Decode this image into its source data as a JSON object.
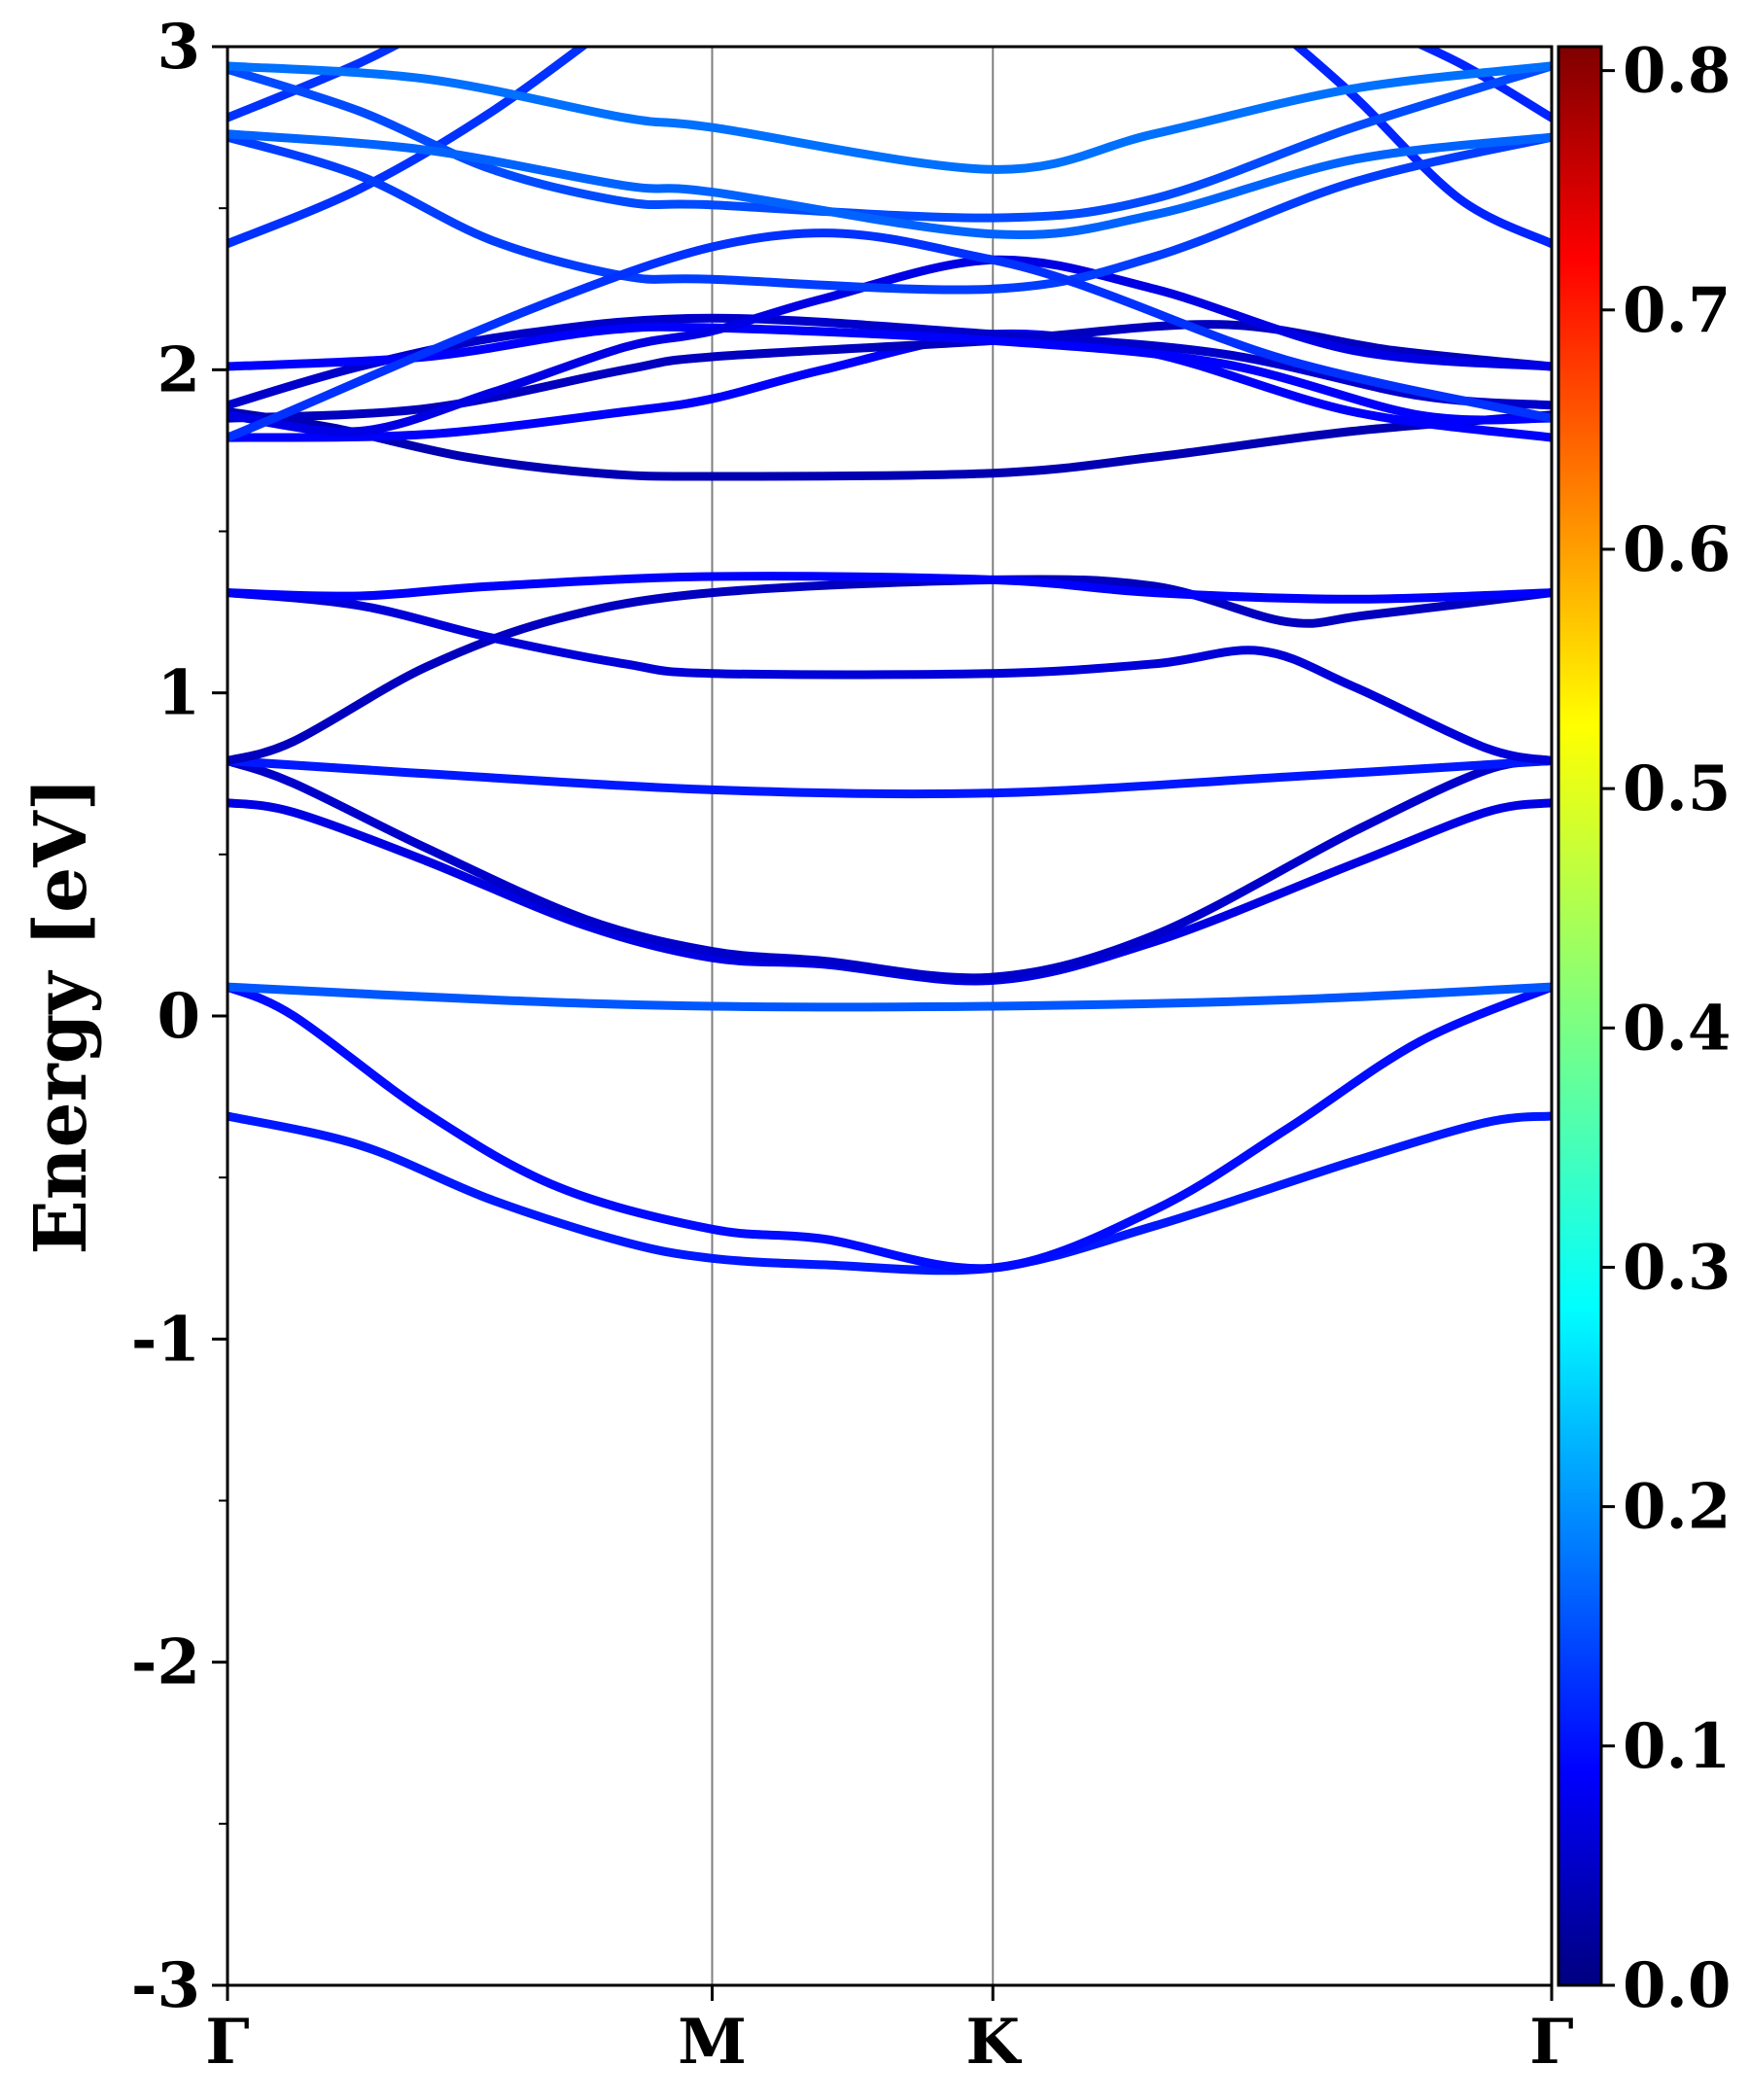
{
  "chart_data": {
    "type": "line",
    "title": "",
    "xlabel": "",
    "ylabel": "Energy [eV]",
    "ylim": [
      -3,
      3
    ],
    "y_ticks": [
      {
        "value": 3,
        "label": "3"
      },
      {
        "value": 2,
        "label": "2"
      },
      {
        "value": 1,
        "label": "1"
      },
      {
        "value": 0,
        "label": "0"
      },
      {
        "value": -1,
        "label": "-1"
      },
      {
        "value": -2,
        "label": "-2"
      },
      {
        "value": -3,
        "label": "-3"
      }
    ],
    "k_path": [
      {
        "label": "Γ",
        "k": 0
      },
      {
        "label": "M",
        "k": 0.366
      },
      {
        "label": "K",
        "k": 0.578
      },
      {
        "label": "Γ",
        "k": 1.0
      }
    ],
    "colorbar": {
      "colormap": "jet",
      "min": 0.0,
      "max": 0.81,
      "ticks": [
        {
          "value": 0.0,
          "label": "0.0"
        },
        {
          "value": 0.1,
          "label": "0.1"
        },
        {
          "value": 0.2,
          "label": "0.2"
        },
        {
          "value": 0.3,
          "label": "0.3"
        },
        {
          "value": 0.4,
          "label": "0.4"
        },
        {
          "value": 0.5,
          "label": "0.5"
        },
        {
          "value": 0.6,
          "label": "0.6"
        },
        {
          "value": 0.7,
          "label": "0.7"
        },
        {
          "value": 0.8,
          "label": "0.8"
        }
      ]
    },
    "series": [
      {
        "weight": 0.12,
        "points": [
          [
            0,
            -0.31
          ],
          [
            0.1,
            -0.4
          ],
          [
            0.2,
            -0.57
          ],
          [
            0.3,
            -0.7
          ],
          [
            0.366,
            -0.75
          ],
          [
            0.45,
            -0.77
          ],
          [
            0.578,
            -0.78
          ],
          [
            0.7,
            -0.65
          ],
          [
            0.85,
            -0.45
          ],
          [
            0.95,
            -0.33
          ],
          [
            1.0,
            -0.31
          ]
        ]
      },
      {
        "weight": 0.11,
        "points": [
          [
            0,
            0.09
          ],
          [
            0.05,
            0.0
          ],
          [
            0.15,
            -0.3
          ],
          [
            0.25,
            -0.53
          ],
          [
            0.366,
            -0.66
          ],
          [
            0.45,
            -0.69
          ],
          [
            0.578,
            -0.78
          ],
          [
            0.7,
            -0.6
          ],
          [
            0.8,
            -0.35
          ],
          [
            0.9,
            -0.08
          ],
          [
            1.0,
            0.09
          ]
        ]
      },
      {
        "weight": 0.17,
        "points": [
          [
            0,
            0.09
          ],
          [
            0.2,
            0.05
          ],
          [
            0.366,
            0.03
          ],
          [
            0.578,
            0.03
          ],
          [
            0.8,
            0.05
          ],
          [
            1.0,
            0.09
          ]
        ]
      },
      {
        "weight": 0.08,
        "points": [
          [
            0,
            0.66
          ],
          [
            0.05,
            0.63
          ],
          [
            0.15,
            0.48
          ],
          [
            0.27,
            0.28
          ],
          [
            0.366,
            0.18
          ],
          [
            0.45,
            0.16
          ],
          [
            0.578,
            0.11
          ],
          [
            0.7,
            0.23
          ],
          [
            0.85,
            0.47
          ],
          [
            0.95,
            0.63
          ],
          [
            1.0,
            0.66
          ]
        ]
      },
      {
        "weight": 0.06,
        "points": [
          [
            0,
            0.79
          ],
          [
            0.05,
            0.72
          ],
          [
            0.15,
            0.52
          ],
          [
            0.27,
            0.3
          ],
          [
            0.366,
            0.2
          ],
          [
            0.45,
            0.17
          ],
          [
            0.578,
            0.12
          ],
          [
            0.7,
            0.25
          ],
          [
            0.85,
            0.57
          ],
          [
            0.95,
            0.76
          ],
          [
            1.0,
            0.79
          ]
        ]
      },
      {
        "weight": 0.12,
        "points": [
          [
            0,
            0.79
          ],
          [
            0.15,
            0.75
          ],
          [
            0.366,
            0.7
          ],
          [
            0.578,
            0.69
          ],
          [
            0.8,
            0.74
          ],
          [
            1.0,
            0.79
          ]
        ]
      },
      {
        "weight": 0.05,
        "points": [
          [
            0,
            0.79
          ],
          [
            0.05,
            0.85
          ],
          [
            0.15,
            1.08
          ],
          [
            0.25,
            1.23
          ],
          [
            0.366,
            1.31
          ],
          [
            0.578,
            1.35
          ],
          [
            0.7,
            1.33
          ],
          [
            0.8,
            1.22
          ],
          [
            0.86,
            1.24
          ],
          [
            1.0,
            1.31
          ]
        ]
      },
      {
        "weight": 0.07,
        "points": [
          [
            0,
            1.31
          ],
          [
            0.1,
            1.27
          ],
          [
            0.2,
            1.17
          ],
          [
            0.3,
            1.09
          ],
          [
            0.366,
            1.06
          ],
          [
            0.578,
            1.06
          ],
          [
            0.7,
            1.09
          ],
          [
            0.78,
            1.13
          ],
          [
            0.85,
            1.02
          ],
          [
            0.95,
            0.83
          ],
          [
            1.0,
            0.79
          ]
        ]
      },
      {
        "weight": 0.1,
        "points": [
          [
            0,
            1.31
          ],
          [
            0.1,
            1.3
          ],
          [
            0.2,
            1.33
          ],
          [
            0.366,
            1.36
          ],
          [
            0.578,
            1.35
          ],
          [
            0.7,
            1.31
          ],
          [
            0.85,
            1.29
          ],
          [
            1.0,
            1.31
          ]
        ]
      },
      {
        "weight": 0.04,
        "points": [
          [
            0,
            1.87
          ],
          [
            0.08,
            1.82
          ],
          [
            0.18,
            1.73
          ],
          [
            0.28,
            1.68
          ],
          [
            0.366,
            1.67
          ],
          [
            0.578,
            1.68
          ],
          [
            0.7,
            1.73
          ],
          [
            0.85,
            1.81
          ],
          [
            1.0,
            1.86
          ]
        ]
      },
      {
        "weight": 0.1,
        "points": [
          [
            0,
            1.79
          ],
          [
            0.15,
            1.8
          ],
          [
            0.3,
            1.87
          ],
          [
            0.366,
            1.91
          ],
          [
            0.45,
            2.0
          ],
          [
            0.578,
            2.11
          ],
          [
            0.7,
            2.05
          ],
          [
            0.85,
            1.87
          ],
          [
            1.0,
            1.79
          ]
        ]
      },
      {
        "weight": 0.05,
        "points": [
          [
            0,
            1.85
          ],
          [
            0.15,
            1.88
          ],
          [
            0.3,
            2.0
          ],
          [
            0.366,
            2.04
          ],
          [
            0.578,
            2.09
          ],
          [
            0.75,
            2.14
          ],
          [
            0.88,
            2.06
          ],
          [
            1.0,
            2.01
          ]
        ]
      },
      {
        "weight": 0.06,
        "points": [
          [
            0,
            1.89
          ],
          [
            0.1,
            2.01
          ],
          [
            0.22,
            2.11
          ],
          [
            0.366,
            2.16
          ],
          [
            0.578,
            2.11
          ],
          [
            0.75,
            2.05
          ],
          [
            0.9,
            1.92
          ],
          [
            1.0,
            1.89
          ]
        ]
      },
      {
        "weight": 0.1,
        "points": [
          [
            0,
            2.01
          ],
          [
            0.15,
            2.04
          ],
          [
            0.28,
            2.12
          ],
          [
            0.366,
            2.13
          ],
          [
            0.578,
            2.09
          ],
          [
            0.75,
            2.02
          ],
          [
            0.9,
            1.86
          ],
          [
            1.0,
            1.85
          ]
        ]
      },
      {
        "weight": 0.08,
        "points": [
          [
            0,
            1.86
          ],
          [
            0.1,
            1.81
          ],
          [
            0.2,
            1.93
          ],
          [
            0.3,
            2.07
          ],
          [
            0.366,
            2.12
          ],
          [
            0.45,
            2.22
          ],
          [
            0.578,
            2.34
          ],
          [
            0.7,
            2.25
          ],
          [
            0.85,
            2.06
          ],
          [
            1.0,
            2.01
          ]
        ]
      },
      {
        "weight": 0.14,
        "points": [
          [
            0,
            2.39
          ],
          [
            0.1,
            2.56
          ],
          [
            0.2,
            2.8
          ],
          [
            0.3,
            3.1
          ]
        ]
      },
      {
        "weight": 0.14,
        "points": [
          [
            0,
            2.78
          ],
          [
            0.1,
            2.95
          ],
          [
            0.17,
            3.1
          ]
        ]
      },
      {
        "weight": 0.13,
        "points": [
          [
            0.78,
            3.1
          ],
          [
            0.85,
            2.85
          ],
          [
            0.93,
            2.53
          ],
          [
            1.0,
            2.39
          ]
        ]
      },
      {
        "weight": 0.13,
        "points": [
          [
            0.85,
            3.1
          ],
          [
            0.93,
            2.95
          ],
          [
            1.0,
            2.78
          ]
        ]
      },
      {
        "weight": 0.15,
        "points": [
          [
            0,
            2.72
          ],
          [
            0.1,
            2.6
          ],
          [
            0.2,
            2.4
          ],
          [
            0.3,
            2.29
          ],
          [
            0.366,
            2.28
          ],
          [
            0.578,
            2.25
          ],
          [
            0.7,
            2.35
          ],
          [
            0.85,
            2.58
          ],
          [
            1.0,
            2.72
          ]
        ]
      },
      {
        "weight": 0.16,
        "points": [
          [
            0,
            2.93
          ],
          [
            0.1,
            2.8
          ],
          [
            0.2,
            2.62
          ],
          [
            0.3,
            2.52
          ],
          [
            0.366,
            2.51
          ],
          [
            0.578,
            2.47
          ],
          [
            0.7,
            2.53
          ],
          [
            0.85,
            2.75
          ],
          [
            1.0,
            2.94
          ]
        ]
      },
      {
        "weight": 0.18,
        "points": [
          [
            0,
            2.73
          ],
          [
            0.15,
            2.68
          ],
          [
            0.3,
            2.57
          ],
          [
            0.366,
            2.55
          ],
          [
            0.578,
            2.42
          ],
          [
            0.7,
            2.48
          ],
          [
            0.85,
            2.65
          ],
          [
            1.0,
            2.72
          ]
        ]
      },
      {
        "weight": 0.19,
        "points": [
          [
            0,
            2.94
          ],
          [
            0.15,
            2.9
          ],
          [
            0.3,
            2.78
          ],
          [
            0.366,
            2.75
          ],
          [
            0.578,
            2.62
          ],
          [
            0.7,
            2.73
          ],
          [
            0.85,
            2.87
          ],
          [
            1.0,
            2.94
          ]
        ]
      },
      {
        "weight": 0.14,
        "points": [
          [
            0,
            1.79
          ],
          [
            0.366,
            2.38
          ],
          [
            0.578,
            2.34
          ],
          [
            0.8,
            2.03
          ],
          [
            1.0,
            1.85
          ]
        ]
      }
    ]
  }
}
